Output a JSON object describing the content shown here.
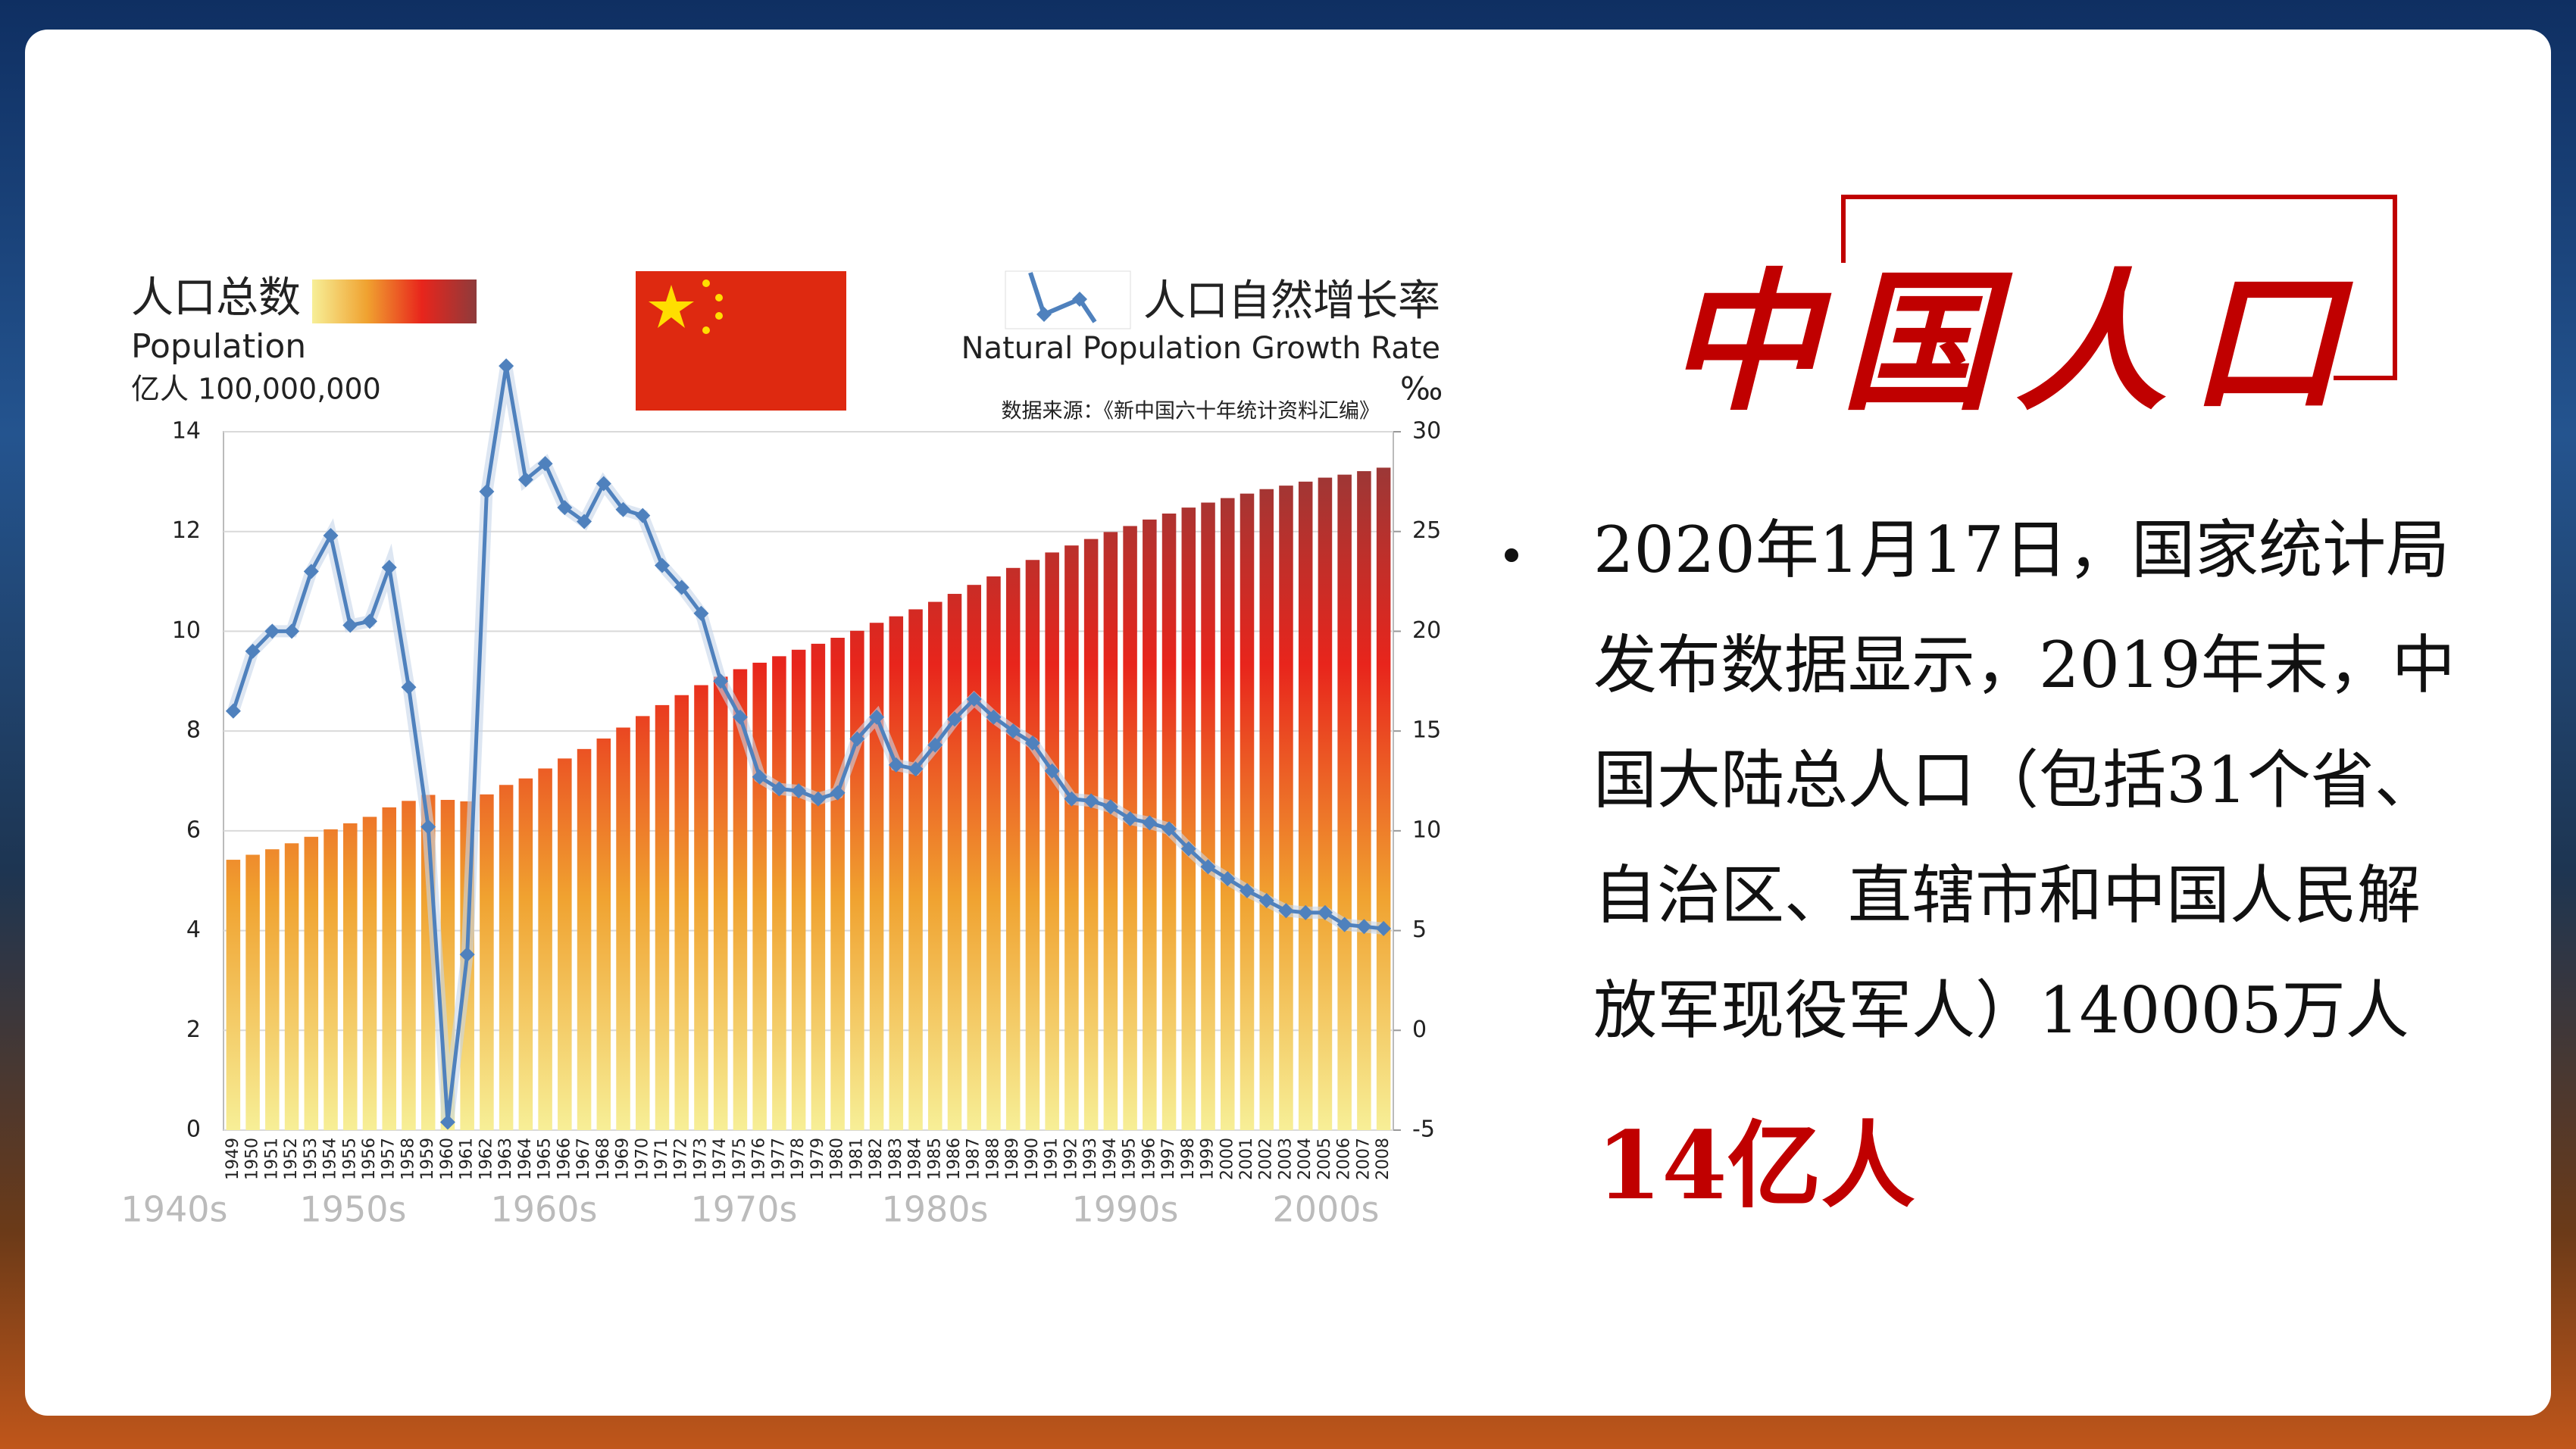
{
  "chart_data": {
    "type": "combo",
    "series": [
      {
        "name": "人口总数",
        "type": "bar",
        "colors": [
          "#f7ef97",
          "#f0a230",
          "#e8251c",
          "#8e3b3b"
        ],
        "values": [
          5.42,
          5.52,
          5.63,
          5.75,
          5.88,
          6.03,
          6.15,
          6.28,
          6.47,
          6.6,
          6.72,
          6.62,
          6.59,
          6.73,
          6.92,
          7.05,
          7.25,
          7.45,
          7.64,
          7.85,
          8.07,
          8.3,
          8.52,
          8.72,
          8.92,
          9.09,
          9.24,
          9.37,
          9.5,
          9.63,
          9.75,
          9.87,
          10.01,
          10.17,
          10.3,
          10.44,
          10.59,
          10.75,
          10.93,
          11.1,
          11.27,
          11.43,
          11.58,
          11.72,
          11.85,
          11.99,
          12.11,
          12.24,
          12.36,
          12.48,
          12.58,
          12.67,
          12.76,
          12.85,
          12.92,
          13.0,
          13.08,
          13.14,
          13.21,
          13.28
        ]
      },
      {
        "name": "人口自然增长率",
        "type": "line",
        "axis": "y2",
        "color": "#4f81bd",
        "values": [
          16,
          19,
          20,
          20,
          23,
          24.8,
          20.3,
          20.5,
          23.2,
          17.2,
          10.2,
          -4.6,
          3.8,
          27,
          33.3,
          27.6,
          28.4,
          26.2,
          25.5,
          27.4,
          26.1,
          25.8,
          23.3,
          22.2,
          20.9,
          17.5,
          15.7,
          12.7,
          12.1,
          12.0,
          11.6,
          11.9,
          14.6,
          15.7,
          13.3,
          13.1,
          14.3,
          15.6,
          16.6,
          15.7,
          15.0,
          14.4,
          13.0,
          11.6,
          11.5,
          11.2,
          10.6,
          10.4,
          10.1,
          9.1,
          8.2,
          7.6,
          7.0,
          6.5,
          6.0,
          5.9,
          5.9,
          5.3,
          5.2,
          5.1
        ]
      }
    ],
    "categories": [
      "1949",
      "1950",
      "1951",
      "1952",
      "1953",
      "1954",
      "1955",
      "1956",
      "1957",
      "1958",
      "1959",
      "1960",
      "1961",
      "1962",
      "1963",
      "1964",
      "1965",
      "1966",
      "1967",
      "1968",
      "1969",
      "1970",
      "1971",
      "1972",
      "1973",
      "1974",
      "1975",
      "1976",
      "1977",
      "1978",
      "1979",
      "1980",
      "1981",
      "1982",
      "1983",
      "1984",
      "1985",
      "1986",
      "1987",
      "1988",
      "1989",
      "1990",
      "1991",
      "1992",
      "1993",
      "1994",
      "1995",
      "1996",
      "1997",
      "1998",
      "1999",
      "2000",
      "2001",
      "2002",
      "2003",
      "2004",
      "2005",
      "2006",
      "2007",
      "2008"
    ],
    "x_group_labels": [
      "1940s",
      "1950s",
      "1960s",
      "1970s",
      "1980s",
      "1990s",
      "2000s"
    ],
    "y_label": "Population",
    "y_unit": "亿人 100,000,000",
    "y2_label": "Natural Population Growth Rate",
    "y2_unit": "‰",
    "source": "数据来源：《新中国六十年统计资料汇编》",
    "ylim": [
      0,
      14
    ],
    "yticks": [
      0,
      2,
      4,
      6,
      8,
      10,
      12,
      14
    ],
    "y2lim": [
      -5,
      30
    ],
    "y2ticks": [
      -5,
      0,
      5,
      10,
      15,
      20,
      25,
      30
    ],
    "grid": true
  },
  "slide": {
    "title": "中国人口",
    "bullet_lines": [
      "2020年1月17日，国家统计局",
      "发布数据显示，2019年末，中",
      "国大陆总人口（包括31个省、",
      "自治区、直辖市和中国人民解",
      "放军现役军人）140005万人"
    ],
    "highlight": "14亿人"
  }
}
